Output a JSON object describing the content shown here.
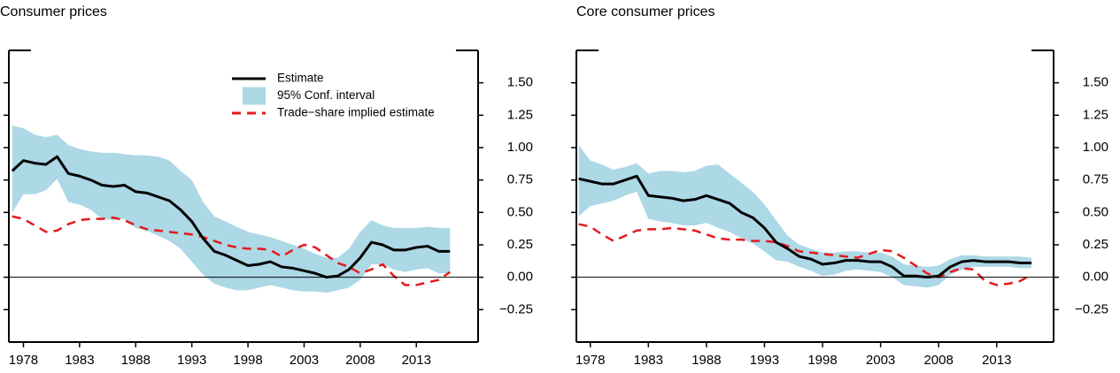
{
  "chart_data": [
    {
      "type": "line",
      "title": "Consumer prices",
      "x": [
        1977,
        1978,
        1979,
        1980,
        1981,
        1982,
        1983,
        1984,
        1985,
        1986,
        1987,
        1988,
        1989,
        1990,
        1991,
        1992,
        1993,
        1994,
        1995,
        1996,
        1997,
        1998,
        1999,
        2000,
        2001,
        2002,
        2003,
        2004,
        2005,
        2006,
        2007,
        2008,
        2009,
        2010,
        2011,
        2012,
        2013,
        2014,
        2015,
        2016
      ],
      "xlim": [
        1976.7,
        2018.5
      ],
      "xticks": [
        1978,
        1983,
        1988,
        1993,
        1998,
        2003,
        2008,
        2013
      ],
      "ylim": [
        -0.5,
        1.75
      ],
      "yticks": [
        {
          "value": -0.25,
          "label": "−0.25"
        },
        {
          "value": 0,
          "label": "0.00"
        },
        {
          "value": 0.25,
          "label": "0.25"
        },
        {
          "value": 0.5,
          "label": "0.50"
        },
        {
          "value": 0.75,
          "label": "0.75"
        },
        {
          "value": 1,
          "label": "1.00"
        },
        {
          "value": 1.25,
          "label": "1.25"
        },
        {
          "value": 1.5,
          "label": "1.50"
        }
      ],
      "legend": "top-right",
      "series": [
        {
          "name": "Estimate",
          "kind": "line",
          "color": "#000000",
          "values": [
            0.82,
            0.9,
            0.88,
            0.87,
            0.93,
            0.8,
            0.78,
            0.75,
            0.71,
            0.7,
            0.71,
            0.66,
            0.65,
            0.62,
            0.59,
            0.52,
            0.43,
            0.3,
            0.2,
            0.17,
            0.13,
            0.09,
            0.1,
            0.12,
            0.08,
            0.07,
            0.05,
            0.03,
            0.0,
            0.01,
            0.06,
            0.15,
            0.27,
            0.25,
            0.21,
            0.21,
            0.23,
            0.24,
            0.2,
            0.2
          ]
        },
        {
          "name": "95% Conf. interval",
          "kind": "band",
          "color": "#add8e6",
          "lower": [
            0.5,
            0.64,
            0.64,
            0.67,
            0.76,
            0.58,
            0.56,
            0.52,
            0.45,
            0.44,
            0.45,
            0.38,
            0.36,
            0.32,
            0.28,
            0.22,
            0.12,
            0.02,
            -0.05,
            -0.08,
            -0.1,
            -0.1,
            -0.08,
            -0.06,
            -0.08,
            -0.1,
            -0.11,
            -0.11,
            -0.12,
            -0.1,
            -0.08,
            -0.02,
            0.1,
            0.1,
            0.06,
            0.04,
            0.06,
            0.07,
            0.03,
            0.03
          ],
          "upper": [
            1.17,
            1.15,
            1.1,
            1.08,
            1.1,
            1.02,
            0.99,
            0.97,
            0.96,
            0.96,
            0.95,
            0.94,
            0.94,
            0.93,
            0.9,
            0.82,
            0.75,
            0.58,
            0.47,
            0.43,
            0.39,
            0.35,
            0.33,
            0.31,
            0.28,
            0.25,
            0.22,
            0.18,
            0.15,
            0.15,
            0.22,
            0.35,
            0.44,
            0.4,
            0.38,
            0.38,
            0.38,
            0.39,
            0.38,
            0.38
          ]
        },
        {
          "name": "Trade−share implied estimate",
          "kind": "dashed",
          "color": "#e41a1c",
          "values": [
            0.47,
            0.45,
            0.4,
            0.35,
            0.36,
            0.41,
            0.44,
            0.45,
            0.45,
            0.46,
            0.44,
            0.4,
            0.37,
            0.36,
            0.35,
            0.34,
            0.33,
            0.31,
            0.28,
            0.25,
            0.23,
            0.22,
            0.22,
            0.21,
            0.16,
            0.21,
            0.25,
            0.23,
            0.17,
            0.11,
            0.08,
            0.03,
            0.06,
            0.1,
            0.01,
            -0.06,
            -0.06,
            -0.04,
            -0.02,
            0.04
          ]
        }
      ]
    },
    {
      "type": "line",
      "title": "Core consumer prices",
      "x": [
        1977,
        1978,
        1979,
        1980,
        1981,
        1982,
        1983,
        1984,
        1985,
        1986,
        1987,
        1988,
        1989,
        1990,
        1991,
        1992,
        1993,
        1994,
        1995,
        1996,
        1997,
        1998,
        1999,
        2000,
        2001,
        2002,
        2003,
        2004,
        2005,
        2006,
        2007,
        2008,
        2009,
        2010,
        2011,
        2012,
        2013,
        2014,
        2015,
        2016
      ],
      "xlim": [
        1976.8,
        2017.9
      ],
      "xticks": [
        1978,
        1983,
        1988,
        1993,
        1998,
        2003,
        2008,
        2013
      ],
      "ylim": [
        -0.5,
        1.75
      ],
      "yticks": [
        {
          "value": -0.25,
          "label": "−0.25"
        },
        {
          "value": 0,
          "label": "0.00"
        },
        {
          "value": 0.25,
          "label": "0.25"
        },
        {
          "value": 0.5,
          "label": "0.50"
        },
        {
          "value": 0.75,
          "label": "0.75"
        },
        {
          "value": 1,
          "label": "1.00"
        },
        {
          "value": 1.25,
          "label": "1.25"
        },
        {
          "value": 1.5,
          "label": "1.50"
        }
      ],
      "series": [
        {
          "kind": "line",
          "color": "#000000",
          "values": [
            0.76,
            0.74,
            0.72,
            0.72,
            0.75,
            0.78,
            0.63,
            0.62,
            0.61,
            0.59,
            0.6,
            0.63,
            0.6,
            0.57,
            0.5,
            0.46,
            0.38,
            0.27,
            0.22,
            0.16,
            0.14,
            0.1,
            0.11,
            0.13,
            0.13,
            0.12,
            0.12,
            0.08,
            0.01,
            0.01,
            0.0,
            0.01,
            0.08,
            0.12,
            0.13,
            0.12,
            0.12,
            0.12,
            0.11,
            0.11
          ]
        },
        {
          "kind": "band",
          "color": "#add8e6",
          "lower": [
            0.47,
            0.55,
            0.57,
            0.59,
            0.63,
            0.66,
            0.45,
            0.43,
            0.42,
            0.4,
            0.4,
            0.42,
            0.38,
            0.35,
            0.3,
            0.26,
            0.2,
            0.13,
            0.12,
            0.08,
            0.05,
            0.01,
            0.02,
            0.05,
            0.06,
            0.05,
            0.04,
            0.0,
            -0.06,
            -0.07,
            -0.08,
            -0.06,
            0.02,
            0.06,
            0.08,
            0.08,
            0.08,
            0.08,
            0.07,
            0.07
          ],
          "upper": [
            1.02,
            0.9,
            0.87,
            0.83,
            0.85,
            0.88,
            0.8,
            0.82,
            0.82,
            0.81,
            0.82,
            0.86,
            0.87,
            0.8,
            0.73,
            0.66,
            0.56,
            0.44,
            0.32,
            0.25,
            0.22,
            0.19,
            0.19,
            0.2,
            0.2,
            0.19,
            0.19,
            0.16,
            0.1,
            0.09,
            0.08,
            0.09,
            0.14,
            0.17,
            0.17,
            0.16,
            0.16,
            0.16,
            0.16,
            0.15
          ]
        },
        {
          "kind": "dashed",
          "color": "#e41a1c",
          "values": [
            0.41,
            0.39,
            0.33,
            0.28,
            0.32,
            0.36,
            0.37,
            0.37,
            0.38,
            0.37,
            0.36,
            0.33,
            0.3,
            0.29,
            0.29,
            0.28,
            0.28,
            0.27,
            0.24,
            0.2,
            0.19,
            0.18,
            0.17,
            0.16,
            0.15,
            0.18,
            0.21,
            0.2,
            0.15,
            0.09,
            0.03,
            0.0,
            0.04,
            0.07,
            0.06,
            -0.03,
            -0.06,
            -0.05,
            -0.03,
            0.02
          ]
        }
      ]
    }
  ]
}
